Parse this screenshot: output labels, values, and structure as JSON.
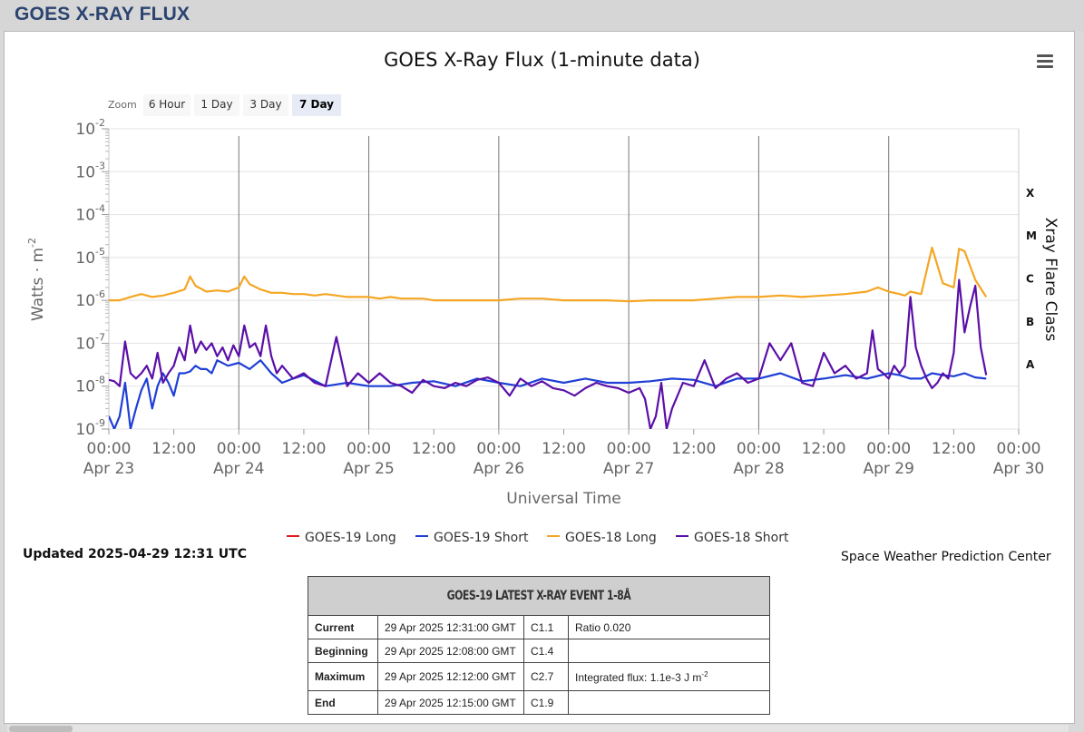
{
  "header": {
    "title": "GOES X-RAY FLUX"
  },
  "chart_data": {
    "type": "line",
    "title": "GOES X-Ray Flux (1-minute data)",
    "xlabel": "Universal Time",
    "ylabel": "Watts · m",
    "ylabel_sup": "-2",
    "y2label": "Xray Flare Class",
    "yscale": "log",
    "ylim": [
      1e-09,
      0.01
    ],
    "xlim_hours": [
      0,
      168
    ],
    "grid": true,
    "y_ticks": [
      {
        "base": "10",
        "exp": "-2",
        "value": 0.01
      },
      {
        "base": "10",
        "exp": "-3",
        "value": 0.001
      },
      {
        "base": "10",
        "exp": "-4",
        "value": 0.0001
      },
      {
        "base": "10",
        "exp": "-5",
        "value": 1e-05
      },
      {
        "base": "10",
        "exp": "-6",
        "value": 1e-06
      },
      {
        "base": "10",
        "exp": "-7",
        "value": 1e-07
      },
      {
        "base": "10",
        "exp": "-8",
        "value": 1e-08
      },
      {
        "base": "10",
        "exp": "-9",
        "value": 1e-09
      }
    ],
    "x_ticks": [
      {
        "h": 0,
        "time": "00:00",
        "date": "Apr 23"
      },
      {
        "h": 12,
        "time": "12:00",
        "date": ""
      },
      {
        "h": 24,
        "time": "00:00",
        "date": "Apr 24"
      },
      {
        "h": 36,
        "time": "12:00",
        "date": ""
      },
      {
        "h": 48,
        "time": "00:00",
        "date": "Apr 25"
      },
      {
        "h": 60,
        "time": "12:00",
        "date": ""
      },
      {
        "h": 72,
        "time": "00:00",
        "date": "Apr 26"
      },
      {
        "h": 84,
        "time": "12:00",
        "date": ""
      },
      {
        "h": 96,
        "time": "00:00",
        "date": "Apr 27"
      },
      {
        "h": 108,
        "time": "12:00",
        "date": ""
      },
      {
        "h": 120,
        "time": "00:00",
        "date": "Apr 28"
      },
      {
        "h": 132,
        "time": "12:00",
        "date": ""
      },
      {
        "h": 144,
        "time": "00:00",
        "date": "Apr 29"
      },
      {
        "h": 156,
        "time": "12:00",
        "date": ""
      },
      {
        "h": 168,
        "time": "00:00",
        "date": "Apr 30"
      }
    ],
    "flare_classes": [
      {
        "label": "X",
        "value": 0.0001
      },
      {
        "label": "M",
        "value": 1e-05
      },
      {
        "label": "C",
        "value": 1e-06
      },
      {
        "label": "B",
        "value": 1e-07
      },
      {
        "label": "A",
        "value": 1e-08
      }
    ],
    "series": [
      {
        "name": "GOES-19 Long",
        "color": "#e41a1c",
        "x": [],
        "y": []
      },
      {
        "name": "GOES-19 Short",
        "color": "#1f3fd6",
        "x": [
          0,
          1,
          2,
          3,
          4,
          5,
          6,
          7,
          8,
          9,
          10,
          11,
          12,
          13,
          14,
          15,
          16,
          17,
          18,
          19,
          20,
          22,
          24,
          26,
          28,
          30,
          32,
          34,
          36,
          40,
          44,
          48,
          52,
          56,
          60,
          64,
          68,
          72,
          76,
          80,
          84,
          88,
          92,
          96,
          100,
          104,
          108,
          112,
          116,
          120,
          124,
          128,
          132,
          136,
          140,
          144,
          146,
          148,
          150,
          152,
          154,
          156,
          158,
          160,
          162
        ],
        "y": [
          2e-09,
          1e-09,
          2e-09,
          1.2e-08,
          1e-09,
          3e-09,
          8e-09,
          1.5e-08,
          3e-09,
          1e-08,
          2e-08,
          1.2e-08,
          6e-09,
          2e-08,
          2e-08,
          2.2e-08,
          3e-08,
          2.5e-08,
          2.5e-08,
          2e-08,
          4e-08,
          3e-08,
          3.5e-08,
          2.5e-08,
          4e-08,
          2e-08,
          1.2e-08,
          1.5e-08,
          1.8e-08,
          1e-08,
          1.2e-08,
          1e-08,
          1e-08,
          1.2e-08,
          1.3e-08,
          1e-08,
          1.5e-08,
          1.2e-08,
          1e-08,
          1.5e-08,
          1.2e-08,
          1.5e-08,
          1.2e-08,
          1.2e-08,
          1.3e-08,
          1.5e-08,
          1.4e-08,
          1e-08,
          1.5e-08,
          1.5e-08,
          2e-08,
          1.3e-08,
          1.5e-08,
          1.8e-08,
          1.5e-08,
          2e-08,
          1.8e-08,
          1.5e-08,
          1.5e-08,
          2e-08,
          1.8e-08,
          1.7e-08,
          2e-08,
          1.6e-08,
          1.5e-08
        ]
      },
      {
        "name": "GOES-18 Long",
        "color": "#f5a623",
        "x": [
          0,
          2,
          4,
          6,
          8,
          10,
          12,
          14,
          15,
          16,
          18,
          20,
          22,
          24,
          25,
          26,
          28,
          30,
          32,
          34,
          36,
          38,
          40,
          42,
          44,
          46,
          48,
          50,
          52,
          54,
          56,
          58,
          60,
          64,
          68,
          72,
          76,
          80,
          84,
          88,
          92,
          96,
          100,
          104,
          108,
          112,
          116,
          120,
          124,
          128,
          132,
          136,
          140,
          142,
          144,
          146,
          147,
          148,
          150,
          152,
          154,
          156,
          157,
          158,
          160,
          162
        ],
        "y": [
          1e-06,
          1e-06,
          1.2e-06,
          1.4e-06,
          1.2e-06,
          1.3e-06,
          1.5e-06,
          1.8e-06,
          3.6e-06,
          2.2e-06,
          1.6e-06,
          1.7e-06,
          1.6e-06,
          2e-06,
          3.6e-06,
          2.4e-06,
          1.8e-06,
          1.5e-06,
          1.5e-06,
          1.4e-06,
          1.4e-06,
          1.3e-06,
          1.4e-06,
          1.3e-06,
          1.2e-06,
          1.2e-06,
          1.2e-06,
          1.1e-06,
          1.2e-06,
          1.1e-06,
          1.1e-06,
          1.1e-06,
          1e-06,
          1e-06,
          1e-06,
          1e-06,
          1.1e-06,
          1.1e-06,
          1e-06,
          1e-06,
          1e-06,
          9.5e-07,
          1e-06,
          1e-06,
          1e-06,
          1.1e-06,
          1.2e-06,
          1.2e-06,
          1.3e-06,
          1.2e-06,
          1.3e-06,
          1.4e-06,
          1.6e-06,
          2e-06,
          1.6e-06,
          1.4e-06,
          1.3e-06,
          1.6e-06,
          1.4e-06,
          1.7e-05,
          2.5e-06,
          2e-06,
          1.6e-05,
          1.4e-05,
          3e-06,
          1.2e-06
        ]
      },
      {
        "name": "GOES-18 Short",
        "color": "#5b0fa8",
        "x": [
          0,
          1,
          2,
          3,
          4,
          5,
          6,
          7,
          8,
          9,
          10,
          11,
          12,
          13,
          14,
          15,
          16,
          17,
          18,
          19,
          20,
          21,
          22,
          23,
          24,
          25,
          26,
          27,
          28,
          29,
          30,
          31,
          32,
          34,
          36,
          38,
          40,
          42,
          44,
          46,
          48,
          50,
          52,
          54,
          56,
          58,
          60,
          62,
          64,
          66,
          68,
          70,
          72,
          74,
          76,
          78,
          80,
          82,
          84,
          86,
          88,
          90,
          92,
          94,
          96,
          98,
          99,
          100,
          101,
          102,
          103,
          104,
          106,
          108,
          110,
          112,
          114,
          116,
          118,
          120,
          122,
          124,
          126,
          128,
          130,
          132,
          134,
          136,
          138,
          140,
          141,
          142,
          143,
          144,
          145,
          146,
          147,
          148,
          149,
          150,
          151,
          152,
          153,
          154,
          155,
          156,
          157,
          158,
          159,
          160,
          161,
          162
        ],
        "y": [
          1.4e-08,
          1.3e-08,
          1e-08,
          1.1e-07,
          2e-08,
          1.5e-08,
          2e-08,
          3e-08,
          1.5e-08,
          6e-08,
          1.2e-08,
          2e-08,
          3e-08,
          8e-08,
          4e-08,
          2.6e-07,
          6e-08,
          1.1e-07,
          7e-08,
          1e-07,
          5e-08,
          8e-08,
          4e-08,
          9e-08,
          5e-08,
          2.6e-07,
          8e-08,
          1e-07,
          5e-08,
          2.6e-07,
          5e-08,
          2e-08,
          3e-08,
          1.5e-08,
          2e-08,
          1.2e-08,
          1e-08,
          1.4e-07,
          1e-08,
          2e-08,
          1.2e-08,
          2e-08,
          1.2e-08,
          1e-08,
          7e-09,
          1.4e-08,
          1e-08,
          9e-09,
          1.2e-08,
          1e-08,
          1.4e-08,
          1.6e-08,
          1.2e-08,
          6e-09,
          1.5e-08,
          1e-08,
          1.3e-08,
          9e-09,
          8e-09,
          6e-09,
          9e-09,
          1.2e-08,
          1e-08,
          9e-09,
          7e-09,
          9e-09,
          5e-09,
          1e-09,
          2e-09,
          1.2e-08,
          1e-09,
          3e-09,
          1.2e-08,
          1e-08,
          4e-08,
          9e-09,
          1.5e-08,
          2e-08,
          1.2e-08,
          1.5e-08,
          1e-07,
          4e-08,
          1e-07,
          1.2e-08,
          1e-08,
          6e-08,
          2e-08,
          3e-08,
          1.5e-08,
          2e-08,
          2e-07,
          2.5e-08,
          2e-08,
          1.5e-08,
          3e-08,
          2e-08,
          3e-08,
          1.2e-06,
          8e-08,
          3e-08,
          1.5e-08,
          9e-09,
          1.2e-08,
          2e-08,
          1.5e-08,
          6e-08,
          3e-06,
          1.8e-07,
          7e-07,
          2.2e-06,
          8e-08,
          1.8e-08
        ]
      }
    ]
  },
  "zoom": {
    "label": "Zoom",
    "buttons": [
      "6 Hour",
      "1 Day",
      "3 Day",
      "7 Day"
    ],
    "active": "7 Day"
  },
  "updated": "Updated 2025-04-29 12:31 UTC",
  "credit": "Space Weather Prediction Center",
  "event_table": {
    "title": "GOES-19 LATEST X-RAY EVENT 1-8Å",
    "rows": [
      {
        "label": "Current",
        "time": "29 Apr 2025 12:31:00 GMT",
        "class": "C1.1",
        "note": "Ratio 0.020",
        "note_sup": ""
      },
      {
        "label": "Beginning",
        "time": "29 Apr 2025 12:08:00 GMT",
        "class": "C1.4",
        "note": "",
        "note_sup": ""
      },
      {
        "label": "Maximum",
        "time": "29 Apr 2025 12:12:00 GMT",
        "class": "C2.7",
        "note": "Integrated flux: 1.1e-3 J m",
        "note_sup": "-2"
      },
      {
        "label": "End",
        "time": "29 Apr 2025 12:15:00 GMT",
        "class": "C1.9",
        "note": "",
        "note_sup": ""
      }
    ]
  }
}
